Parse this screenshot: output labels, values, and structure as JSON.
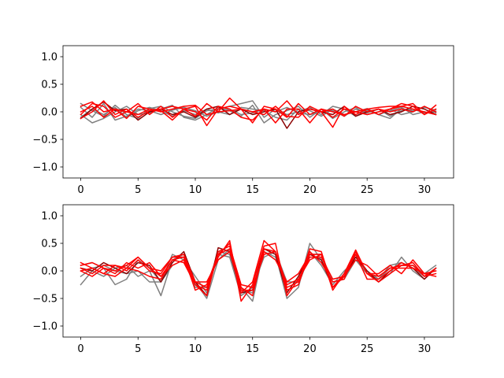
{
  "chart_data": [
    {
      "type": "line",
      "x": [
        0,
        1,
        2,
        3,
        4,
        5,
        6,
        7,
        8,
        9,
        10,
        11,
        12,
        13,
        14,
        15,
        16,
        17,
        18,
        19,
        20,
        21,
        22,
        23,
        24,
        25,
        26,
        27,
        28,
        29,
        30,
        31
      ],
      "xlim": [
        -1.55,
        32.55
      ],
      "ylim": [
        -1.2,
        1.2
      ],
      "xticks": [
        0,
        5,
        10,
        15,
        20,
        25,
        30
      ],
      "yticks": [
        -1.0,
        -0.5,
        0.0,
        0.5,
        1.0
      ],
      "xtick_labels": [
        "0",
        "5",
        "10",
        "15",
        "20",
        "25",
        "30"
      ],
      "ytick_labels": [
        "−1.0",
        "−0.5",
        "0.0",
        "0.5",
        "1.0"
      ],
      "grid": false,
      "series": [
        {
          "color": "#808080",
          "values": [
            0.15,
            0.02,
            -0.08,
            0.12,
            -0.05,
            -0.12,
            0.06,
            0.1,
            0.0,
            -0.08,
            -0.12,
            0.02,
            0.05,
            0.1,
            0.15,
            0.2,
            -0.1,
            0.05,
            -0.05,
            0.0,
            0.08,
            -0.05,
            0.1,
            0.05,
            -0.08,
            0.03,
            -0.05,
            -0.12,
            0.06,
            0.02,
            0.08,
            0.03
          ]
        },
        {
          "color": "#808080",
          "values": [
            -0.05,
            -0.2,
            -0.12,
            0.0,
            0.1,
            -0.05,
            -0.02,
            0.05,
            0.12,
            -0.1,
            -0.15,
            -0.05,
            0.08,
            0.02,
            -0.08,
            0.12,
            -0.2,
            -0.05,
            0.02,
            0.1,
            -0.1,
            0.05,
            -0.12,
            0.0,
            0.08,
            -0.05,
            0.0,
            0.05,
            -0.05,
            0.0,
            0.1,
            -0.02
          ]
        },
        {
          "color": "#808080",
          "values": [
            0.08,
            -0.1,
            0.15,
            -0.15,
            -0.08,
            0.05,
            0.02,
            -0.05,
            0.03,
            0.08,
            0.02,
            -0.08,
            0.0,
            -0.05,
            0.08,
            0.05,
            0.02,
            -0.1,
            -0.15,
            0.05,
            0.02,
            -0.08,
            0.05,
            -0.05,
            0.0,
            0.06,
            -0.05,
            0.02,
            0.08,
            -0.05,
            0.0,
            -0.05
          ]
        },
        {
          "color": "#808080",
          "values": [
            -0.1,
            0.05,
            -0.05,
            0.08,
            -0.1,
            0.02,
            0.08,
            0.02,
            -0.08,
            0.02,
            -0.05,
            0.05,
            -0.02,
            0.05,
            -0.05,
            -0.02,
            0.05,
            0.0,
            0.08,
            -0.02,
            -0.05,
            0.0,
            0.02,
            -0.08,
            0.05,
            -0.02,
            0.05,
            -0.08,
            0.02,
            0.05,
            -0.02,
            0.0
          ]
        },
        {
          "color": "#8b0000",
          "values": [
            -0.12,
            0.05,
            0.18,
            0.02,
            0.05,
            -0.15,
            0.0,
            0.05,
            -0.05,
            0.0,
            -0.1,
            0.05,
            0.1,
            -0.05,
            0.05,
            -0.05,
            0.0,
            0.05,
            -0.3,
            0.0,
            0.05,
            0.0,
            -0.05,
            0.1,
            -0.08,
            0.0,
            0.05,
            -0.05,
            0.0,
            0.1,
            0.05,
            -0.05
          ]
        },
        {
          "color": "#ff0000",
          "values": [
            -0.12,
            0.0,
            0.2,
            -0.05,
            0.05,
            -0.1,
            0.02,
            0.05,
            0.1,
            0.05,
            -0.08,
            0.15,
            0.0,
            0.25,
            0.05,
            -0.2,
            0.1,
            0.05,
            -0.1,
            0.15,
            -0.05,
            0.05,
            0.0,
            -0.05,
            0.0,
            0.05,
            0.08,
            0.1,
            0.1,
            0.05,
            0.0,
            -0.05
          ]
        },
        {
          "color": "#ff0000",
          "values": [
            -0.05,
            0.15,
            0.1,
            -0.1,
            0.0,
            0.15,
            -0.05,
            0.1,
            -0.1,
            0.05,
            0.1,
            -0.25,
            0.05,
            0.1,
            0.05,
            0.0,
            0.05,
            0.0,
            0.2,
            -0.05,
            0.05,
            0.0,
            -0.28,
            0.1,
            -0.05,
            0.05,
            -0.05,
            0.05,
            0.1,
            0.15,
            -0.05,
            0.12
          ]
        },
        {
          "color": "#ff0000",
          "values": [
            0.1,
            0.18,
            0.0,
            0.05,
            -0.12,
            0.1,
            0.05,
            0.0,
            0.05,
            0.1,
            0.12,
            -0.05,
            0.0,
            0.02,
            0.05,
            0.0,
            -0.05,
            0.1,
            -0.08,
            -0.1,
            0.1,
            0.0,
            0.05,
            -0.08,
            0.1,
            0.0,
            0.05,
            0.0,
            0.05,
            0.0,
            0.1,
            0.0
          ]
        },
        {
          "color": "#ff0000",
          "values": [
            0.0,
            0.1,
            -0.1,
            0.05,
            0.0,
            -0.05,
            0.05,
            0.02,
            -0.15,
            0.05,
            0.0,
            -0.15,
            0.1,
            0.05,
            -0.1,
            -0.15,
            0.05,
            -0.2,
            0.05,
            0.05,
            -0.2,
            0.05,
            -0.1,
            0.05,
            0.0,
            -0.05,
            0.0,
            0.05,
            0.15,
            0.1,
            -0.05,
            0.05
          ]
        }
      ]
    },
    {
      "type": "line",
      "x": [
        0,
        1,
        2,
        3,
        4,
        5,
        6,
        7,
        8,
        9,
        10,
        11,
        12,
        13,
        14,
        15,
        16,
        17,
        18,
        19,
        20,
        21,
        22,
        23,
        24,
        25,
        26,
        27,
        28,
        29,
        30,
        31
      ],
      "xlim": [
        -1.55,
        32.55
      ],
      "ylim": [
        -1.2,
        1.2
      ],
      "xticks": [
        0,
        5,
        10,
        15,
        20,
        25,
        30
      ],
      "yticks": [
        -1.0,
        -0.5,
        0.0,
        0.5,
        1.0
      ],
      "xtick_labels": [
        "0",
        "5",
        "10",
        "15",
        "20",
        "25",
        "30"
      ],
      "ytick_labels": [
        "−1.0",
        "−0.5",
        "0.0",
        "0.5",
        "1.0"
      ],
      "grid": false,
      "series": [
        {
          "color": "#808080",
          "values": [
            -0.25,
            0.0,
            -0.1,
            0.05,
            0.1,
            -0.1,
            0.0,
            -0.45,
            0.2,
            0.3,
            -0.2,
            -0.5,
            0.2,
            0.4,
            -0.3,
            -0.55,
            0.4,
            0.3,
            -0.5,
            -0.3,
            0.5,
            0.2,
            -0.3,
            -0.1,
            0.3,
            0.0,
            -0.2,
            -0.05,
            0.25,
            0.0,
            -0.15,
            0.05
          ]
        },
        {
          "color": "#808080",
          "values": [
            0.1,
            0.15,
            0.05,
            -0.25,
            -0.15,
            0.2,
            0.05,
            -0.2,
            0.3,
            0.2,
            -0.1,
            -0.4,
            0.3,
            0.25,
            -0.45,
            -0.3,
            0.25,
            0.35,
            -0.2,
            -0.2,
            0.35,
            0.1,
            -0.25,
            0.0,
            0.2,
            -0.05,
            -0.15,
            0.1,
            0.15,
            0.05,
            -0.1,
            0.05
          ]
        },
        {
          "color": "#808080",
          "values": [
            -0.1,
            0.05,
            0.1,
            0.0,
            -0.05,
            0.0,
            -0.2,
            -0.2,
            0.1,
            0.2,
            -0.3,
            -0.3,
            0.35,
            0.3,
            -0.35,
            -0.4,
            0.35,
            0.25,
            -0.35,
            -0.25,
            0.3,
            0.3,
            -0.2,
            -0.15,
            0.2,
            0.0,
            -0.15,
            0.05,
            0.1,
            0.1,
            -0.05,
            0.1
          ]
        },
        {
          "color": "#8b0000",
          "values": [
            0.05,
            0.0,
            0.15,
            0.05,
            -0.05,
            0.15,
            0.1,
            -0.2,
            0.15,
            0.35,
            -0.2,
            -0.45,
            0.42,
            0.35,
            -0.4,
            -0.35,
            0.4,
            0.3,
            -0.4,
            -0.1,
            0.3,
            0.2,
            -0.3,
            -0.1,
            0.25,
            0.0,
            -0.2,
            0.0,
            0.15,
            0.05,
            -0.15,
            0.05
          ]
        },
        {
          "color": "#ff0000",
          "values": [
            0.15,
            0.05,
            -0.05,
            0.1,
            0.05,
            0.25,
            0.05,
            -0.1,
            0.2,
            0.25,
            -0.35,
            -0.25,
            0.3,
            0.5,
            -0.4,
            -0.2,
            0.55,
            0.35,
            -0.3,
            -0.2,
            0.4,
            0.35,
            -0.3,
            -0.1,
            0.2,
            0.1,
            -0.1,
            0.05,
            0.1,
            0.15,
            -0.1,
            0.05
          ]
        },
        {
          "color": "#ff0000",
          "values": [
            0.05,
            -0.05,
            0.1,
            0.1,
            0.0,
            0.2,
            0.0,
            -0.05,
            0.25,
            0.25,
            -0.2,
            -0.3,
            0.25,
            0.55,
            -0.55,
            -0.25,
            0.45,
            0.5,
            -0.45,
            -0.15,
            0.2,
            0.3,
            -0.35,
            -0.05,
            0.38,
            -0.05,
            -0.05,
            0.1,
            -0.05,
            0.2,
            -0.05,
            0.0
          ]
        },
        {
          "color": "#ff0000",
          "values": [
            0.0,
            -0.1,
            0.05,
            -0.05,
            0.15,
            0.05,
            0.15,
            -0.1,
            0.1,
            0.2,
            -0.25,
            -0.45,
            0.35,
            0.45,
            -0.25,
            -0.3,
            0.3,
            0.35,
            -0.25,
            -0.15,
            0.25,
            0.25,
            -0.15,
            -0.1,
            0.3,
            -0.15,
            -0.15,
            0.0,
            0.15,
            0.05,
            -0.05,
            -0.1
          ]
        },
        {
          "color": "#ff0000",
          "values": [
            0.1,
            0.15,
            0.05,
            0.0,
            0.1,
            0.25,
            0.05,
            0.0,
            0.25,
            0.3,
            -0.2,
            -0.2,
            0.2,
            0.35,
            -0.35,
            -0.35,
            0.35,
            0.2,
            -0.2,
            -0.05,
            0.3,
            0.3,
            -0.3,
            -0.05,
            0.35,
            -0.05,
            -0.2,
            -0.05,
            0.1,
            0.1,
            -0.1,
            -0.05
          ]
        },
        {
          "color": "#ff0000",
          "values": [
            0.0,
            0.05,
            -0.05,
            -0.1,
            0.05,
            0.0,
            -0.1,
            -0.15,
            0.2,
            0.15,
            -0.25,
            -0.35,
            0.3,
            0.4,
            -0.3,
            -0.45,
            0.4,
            0.35,
            -0.35,
            -0.25,
            0.35,
            0.15,
            -0.2,
            -0.15,
            0.35,
            -0.05,
            -0.1,
            0.05,
            0.05,
            0.05,
            -0.05,
            0.0
          ]
        }
      ]
    }
  ]
}
